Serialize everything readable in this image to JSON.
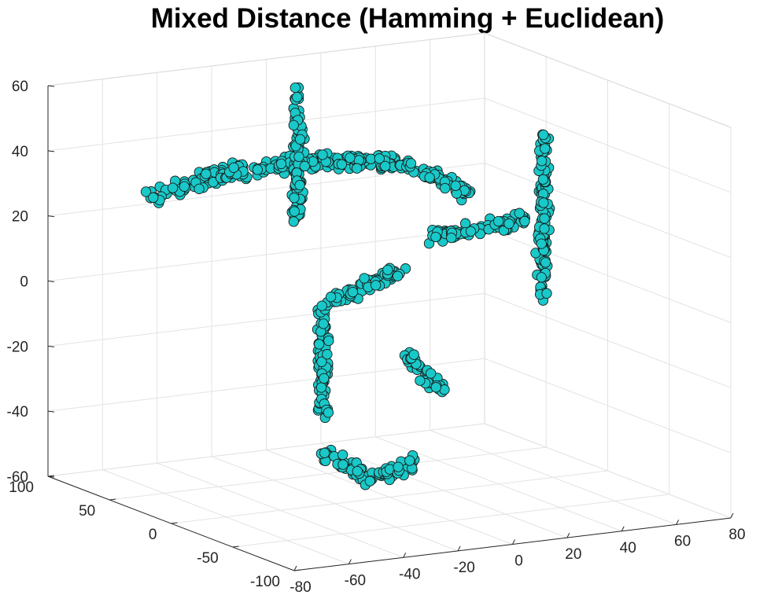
{
  "chart_data": {
    "type": "scatter",
    "title": "Mixed Distance (Hamming + Euclidean)",
    "xlabel": "",
    "ylabel": "",
    "zlabel": "",
    "xlim": [
      -80,
      80
    ],
    "ylim": [
      -100,
      100
    ],
    "zlim": [
      -60,
      60
    ],
    "x_ticks": [
      "-80",
      "-60",
      "-40",
      "-20",
      "0",
      "20",
      "40",
      "60",
      "80"
    ],
    "y_ticks": [
      "-100",
      "-50",
      "0",
      "50",
      "100"
    ],
    "z_ticks": [
      "-60",
      "-40",
      "-20",
      "0",
      "20",
      "40",
      "60"
    ],
    "grid": true,
    "marker_color": "#19c8c8",
    "marker_edge_color": "#1a1a1a",
    "view": "3d-default",
    "clusters": [
      {
        "shape": "arc",
        "points": [
          [
            -60,
            60,
            30
          ],
          [
            -40,
            40,
            38
          ],
          [
            -15,
            20,
            42
          ],
          [
            10,
            10,
            40
          ],
          [
            30,
            0,
            30
          ]
        ]
      },
      {
        "shape": "vertical",
        "points": [
          [
            -20,
            30,
            62
          ],
          [
            -20,
            30,
            22
          ]
        ]
      },
      {
        "shape": "vertical",
        "points": [
          [
            -20,
            10,
            0
          ],
          [
            -20,
            10,
            -35
          ]
        ]
      },
      {
        "shape": "horizontal",
        "points": [
          [
            -18,
            10,
            0
          ],
          [
            5,
            0,
            10
          ]
        ]
      },
      {
        "shape": "horizontal",
        "points": [
          [
            10,
            -10,
            20
          ],
          [
            40,
            -25,
            25
          ]
        ]
      },
      {
        "shape": "vertical",
        "points": [
          [
            70,
            30,
            40
          ],
          [
            70,
            30,
            -10
          ]
        ]
      },
      {
        "shape": "curve",
        "points": [
          [
            0,
            -15,
            -15
          ],
          [
            5,
            -15,
            -20
          ],
          [
            10,
            -20,
            -25
          ]
        ]
      },
      {
        "shape": "curve",
        "points": [
          [
            -20,
            10,
            -45
          ],
          [
            -5,
            5,
            -55
          ],
          [
            10,
            0,
            -50
          ]
        ]
      }
    ]
  }
}
